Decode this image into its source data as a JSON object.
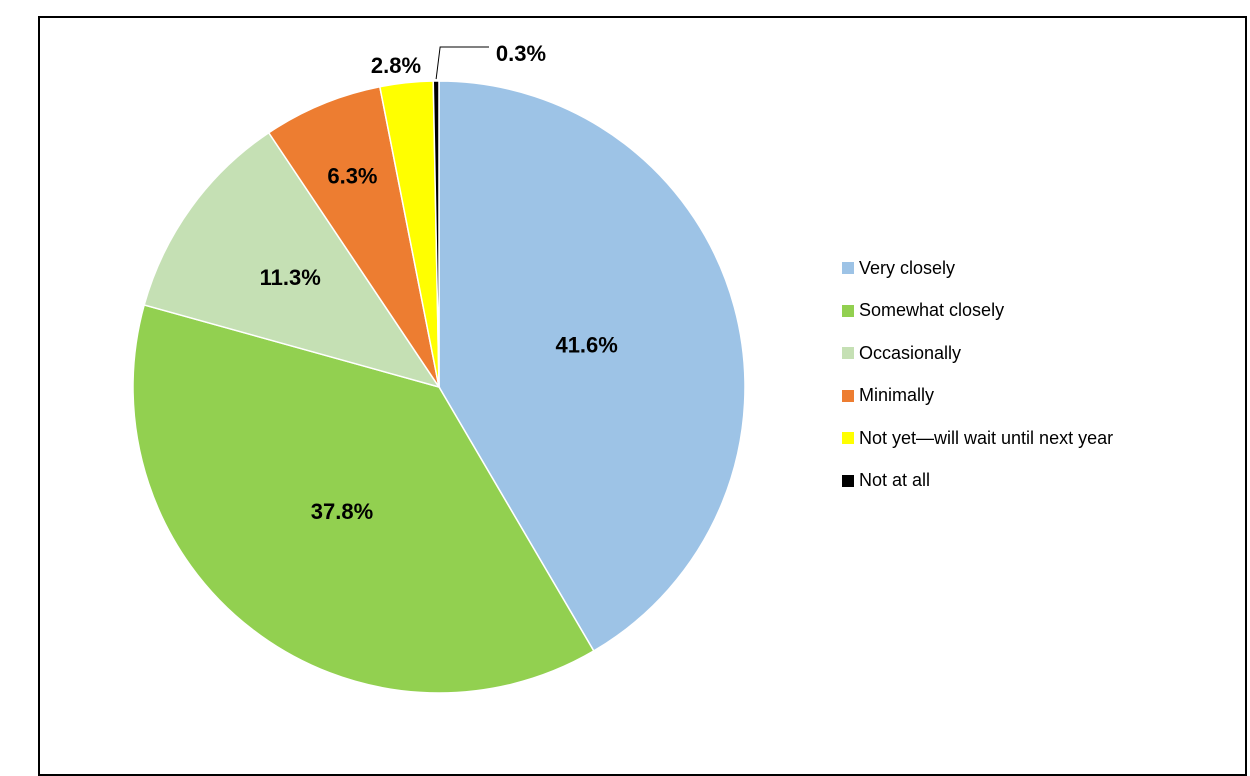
{
  "chart_data": {
    "type": "pie",
    "categories": [
      "Very closely",
      "Somewhat closely",
      "Occasionally",
      "Minimally",
      "Not yet—will wait until next year",
      "Not at all"
    ],
    "values": [
      41.6,
      37.8,
      11.3,
      6.3,
      2.8,
      0.3
    ],
    "value_labels": [
      "41.6%",
      "37.8%",
      "11.3%",
      "6.3%",
      "2.8%",
      "0.3%"
    ],
    "colors": [
      "#9DC3E6",
      "#92D050",
      "#C5E0B4",
      "#ED7D31",
      "#FFFF00",
      "#000000"
    ],
    "start_angle": "12 o'clock",
    "direction": "clockwise",
    "legend_position": "right"
  }
}
